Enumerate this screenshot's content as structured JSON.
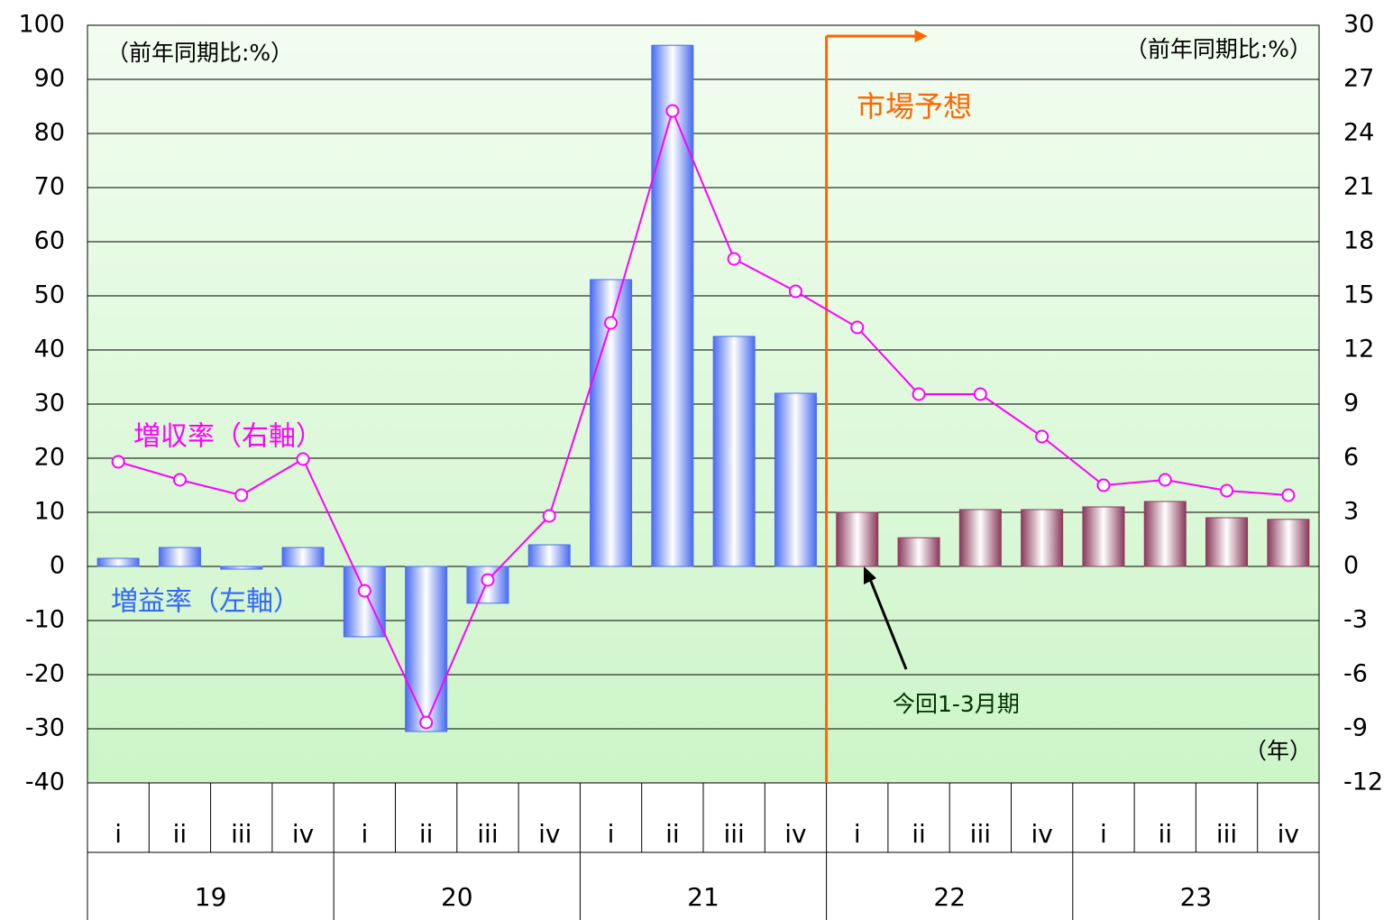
{
  "chart_data": {
    "type": "bar-line",
    "categories": [
      "i",
      "ii",
      "iii",
      "iv",
      "i",
      "ii",
      "iii",
      "iv",
      "i",
      "ii",
      "iii",
      "iv",
      "i",
      "ii",
      "iii",
      "iv",
      "i",
      "ii",
      "iii",
      "iv"
    ],
    "groups": [
      "19",
      "20",
      "21",
      "22",
      "23"
    ],
    "series": [
      {
        "name": "増益率（左軸）",
        "type": "bar",
        "axis": "y",
        "color": "#3366ff",
        "colors": [
          "#4a6cf0",
          "#4a6cf0",
          "#4a6cf0",
          "#4a6cf0",
          "#4a6cf0",
          "#4a6cf0",
          "#4a6cf0",
          "#4a6cf0",
          "#4a6cf0",
          "#4a6cf0",
          "#4a6cf0",
          "#4a6cf0",
          "#8a3a5c",
          "#8a3a5c",
          "#8a3a5c",
          "#8a3a5c",
          "#8a3a5c",
          "#8a3a5c",
          "#8a3a5c",
          "#8a3a5c"
        ],
        "values": [
          1.5,
          3.5,
          -0.5,
          3.5,
          -13,
          -30.5,
          -6.8,
          4,
          53,
          96.3,
          42.5,
          32,
          10,
          5.3,
          10.5,
          10.5,
          11,
          12,
          9,
          8.7
        ]
      },
      {
        "name": "増収率（右軸）",
        "type": "line",
        "axis": "y2",
        "color": "#ff00ff",
        "values": [
          5.8,
          4.8,
          3.95,
          5.95,
          -1.35,
          -8.65,
          -0.75,
          2.8,
          13.5,
          25.25,
          17.05,
          15.25,
          13.25,
          9.55,
          9.55,
          7.2,
          4.5,
          4.8,
          4.2,
          3.95
        ]
      }
    ],
    "ylim": [
      -40,
      100
    ],
    "yticks": [
      100,
      90,
      80,
      70,
      60,
      50,
      40,
      30,
      20,
      10,
      0,
      -10,
      -20,
      -30,
      -40
    ],
    "y2lim": [
      -12,
      30
    ],
    "y2ticks": [
      30,
      27,
      24,
      21,
      18,
      15,
      12,
      9,
      6,
      3,
      0,
      -3,
      -6,
      -9,
      -12
    ],
    "grid": true,
    "annotations": {
      "left_unit": "（前年同期比:%）",
      "right_unit": "（前年同期比:%）",
      "forecast": "市場予想",
      "current": "今回1-3月期",
      "year_unit": "（年）"
    }
  }
}
